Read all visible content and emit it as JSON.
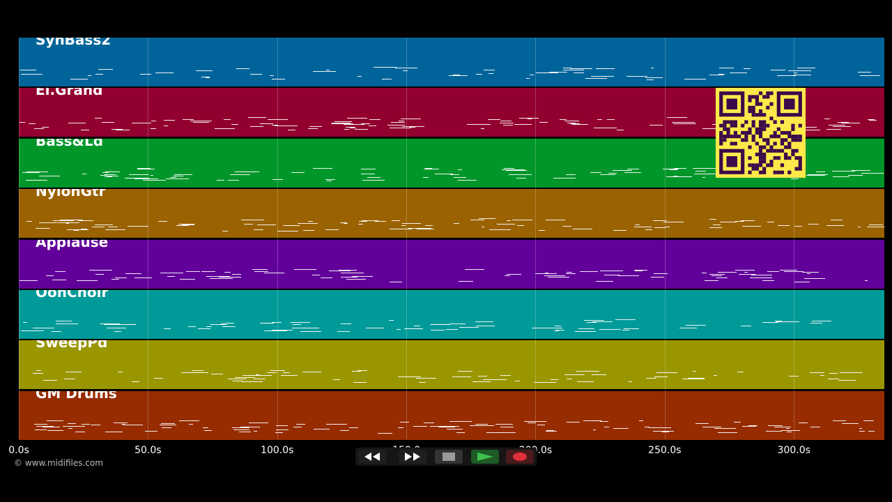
{
  "tracks": [
    {
      "name": "SynBass2",
      "color": "#00649a"
    },
    {
      "name": "El.Grand",
      "color": "#920030"
    },
    {
      "name": "Bass&Ld",
      "color": "#00962a"
    },
    {
      "name": "NylonGtr",
      "color": "#9a6200"
    },
    {
      "name": "Applause",
      "color": "#62009a"
    },
    {
      "name": "OohChoir",
      "color": "#009a98"
    },
    {
      "name": "SweepPd",
      "color": "#9a9600"
    },
    {
      "name": "GM Drums",
      "color": "#962c00"
    }
  ],
  "timeline": {
    "seconds_visible": 335,
    "ticks": [
      {
        "label": "0.0s",
        "t": 0
      },
      {
        "label": "50.0s",
        "t": 50
      },
      {
        "label": "100.0s",
        "t": 100
      },
      {
        "label": "150.0",
        "t": 150
      },
      {
        "label": "200.0s",
        "t": 200
      },
      {
        "label": "250.0s",
        "t": 250
      },
      {
        "label": "300.0s",
        "t": 300
      }
    ]
  },
  "copyright": "© www.midifiles.com",
  "transport": {
    "rewind_icon": "rewind-icon",
    "fast_forward_icon": "fast-forward-icon",
    "stop_icon": "stop-icon",
    "play_icon": "play-icon",
    "record_icon": "record-icon",
    "play_color": "#3fbf4f",
    "record_color": "#e0303a"
  },
  "overlay": {
    "qr_color": "#ffe94a",
    "qr_ink": "#3a0a4a"
  }
}
